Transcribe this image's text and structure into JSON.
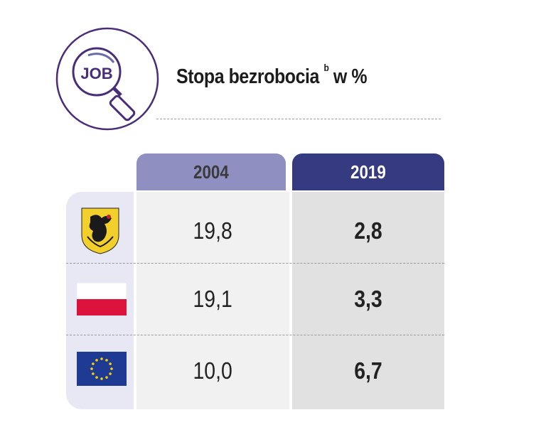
{
  "header": {
    "icon_label": "JOB",
    "title": "Stopa bezrobocia",
    "title_sup": "b",
    "title_suffix": "w %"
  },
  "chart_data": {
    "type": "table",
    "title": "Stopa bezrobocia b w %",
    "columns": [
      "2004",
      "2019"
    ],
    "rows": [
      {
        "region": "pomorskie",
        "icon": "pomeranian-griffin-coat-of-arms",
        "values": [
          "19,8",
          "2,8"
        ]
      },
      {
        "region": "Polska",
        "icon": "poland-flag",
        "values": [
          "19,1",
          "3,3"
        ]
      },
      {
        "region": "UE",
        "icon": "eu-flag",
        "values": [
          "10,0",
          "6,7"
        ]
      }
    ]
  },
  "colors": {
    "head_2004": "#8f8fc2",
    "head_2019": "#363a80",
    "accent": "#4a2d7a"
  }
}
